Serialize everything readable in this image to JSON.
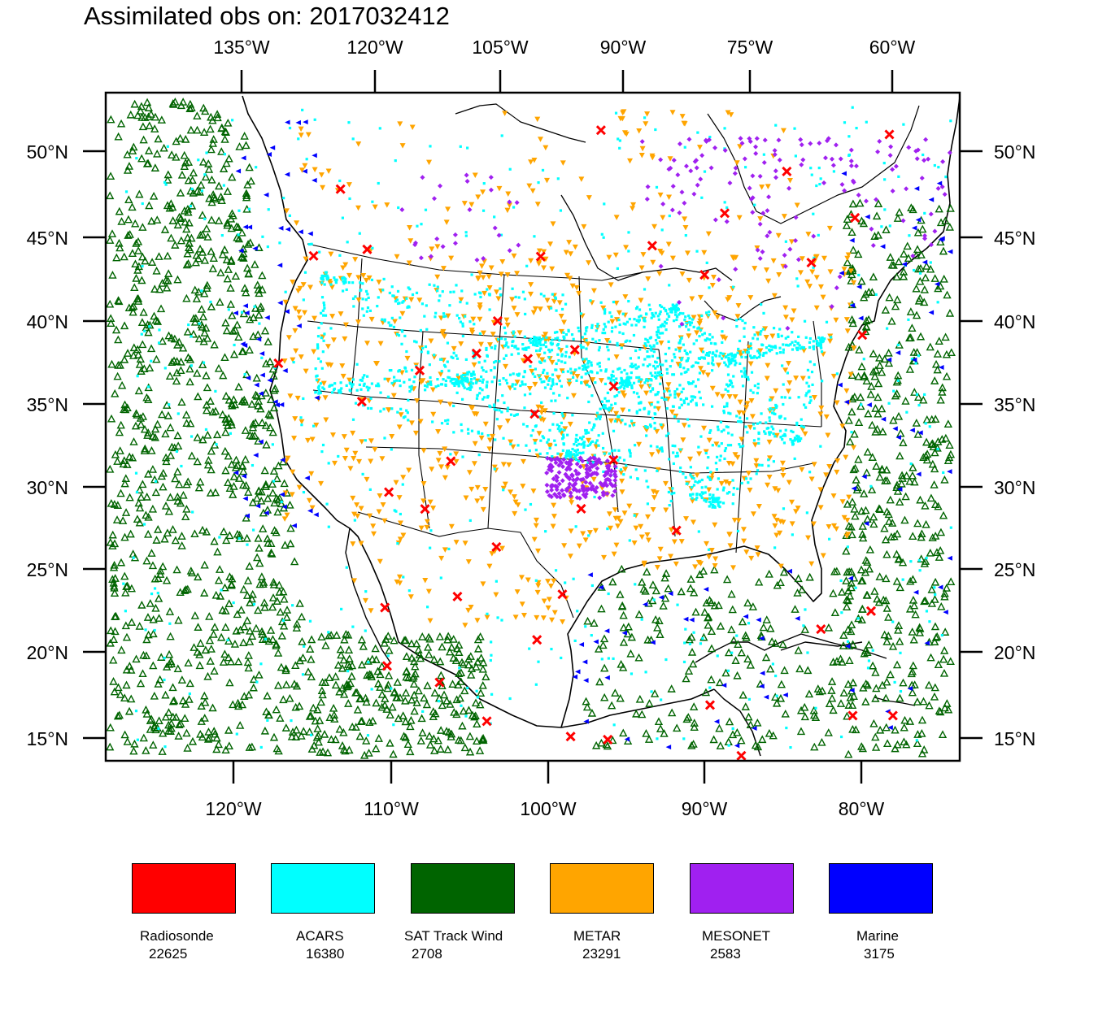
{
  "title": "Assimilated obs on: 2017032412",
  "map": {
    "top_lon_labels": [
      "135°W",
      "120°W",
      "105°W",
      "90°W",
      "75°W",
      "60°W"
    ],
    "bottom_lon_labels": [
      "120°W",
      "110°W",
      "100°W",
      "90°W",
      "80°W"
    ],
    "lat_labels": [
      "50°N",
      "45°N",
      "40°N",
      "35°N",
      "30°N",
      "25°N",
      "20°N",
      "15°N"
    ],
    "lon_range": [
      -128,
      -74
    ],
    "lat_range": [
      14,
      53
    ]
  },
  "legend": [
    {
      "name": "Radiosonde",
      "count": "22625",
      "color": "#ff0000",
      "marker": "x-marker"
    },
    {
      "name": "ACARS",
      "count": "16380",
      "color": "#00ffff",
      "marker": "square-marker"
    },
    {
      "name": "SAT Track Wind",
      "count": "2708",
      "color": "#006400",
      "marker": "triangle-up-marker"
    },
    {
      "name": "METAR",
      "count": "23291",
      "color": "#ffa500",
      "marker": "triangle-down-marker"
    },
    {
      "name": "MESONET",
      "count": "2583",
      "color": "#a020f0",
      "marker": "diamond-marker"
    },
    {
      "name": "Marine",
      "count": "3175",
      "color": "#0000ff",
      "marker": "triangle-left-marker"
    }
  ],
  "radiosonde_stations": [
    [
      -114,
      48.5
    ],
    [
      -112,
      44.8
    ],
    [
      -117.3,
      38.3
    ],
    [
      -111.8,
      35.7
    ],
    [
      -109.8,
      30.2
    ],
    [
      -108.2,
      37.4
    ],
    [
      -107.5,
      29.1
    ],
    [
      -104.6,
      38.3
    ],
    [
      -103.3,
      40.2
    ],
    [
      -100.6,
      44
    ],
    [
      -101.3,
      37.9
    ],
    [
      -100.8,
      34.6
    ],
    [
      -98.3,
      38.4
    ],
    [
      -97.8,
      28.9
    ],
    [
      -95.8,
      36.2
    ],
    [
      -96.7,
      51.5
    ],
    [
      -93.3,
      44.6
    ],
    [
      -89.9,
      42.9
    ],
    [
      -88.5,
      46.6
    ],
    [
      -84.3,
      49.2
    ],
    [
      -82.9,
      43.8
    ],
    [
      -79.9,
      46.6
    ],
    [
      -77.3,
      51.7
    ],
    [
      -79.8,
      39.6
    ],
    [
      -103,
      26.7
    ],
    [
      -109.7,
      23.3
    ],
    [
      -109.4,
      19.8
    ],
    [
      -105.3,
      23.8
    ],
    [
      -106.2,
      18.7
    ],
    [
      -103.3,
      16.3
    ],
    [
      -100.4,
      21.1
    ],
    [
      -98.3,
      15.3
    ],
    [
      -96.1,
      15.1
    ],
    [
      -90,
      17.2
    ],
    [
      -88.2,
      14.2
    ],
    [
      -81.5,
      16.8
    ],
    [
      -79.1,
      16.9
    ],
    [
      -80.1,
      23.1
    ],
    [
      -83.2,
      21.9
    ],
    [
      -91.9,
      27.6
    ],
    [
      -95.8,
      31.8
    ],
    [
      -98.9,
      23.8
    ],
    [
      -106,
      31.9
    ],
    [
      -115.5,
      44.6
    ]
  ]
}
